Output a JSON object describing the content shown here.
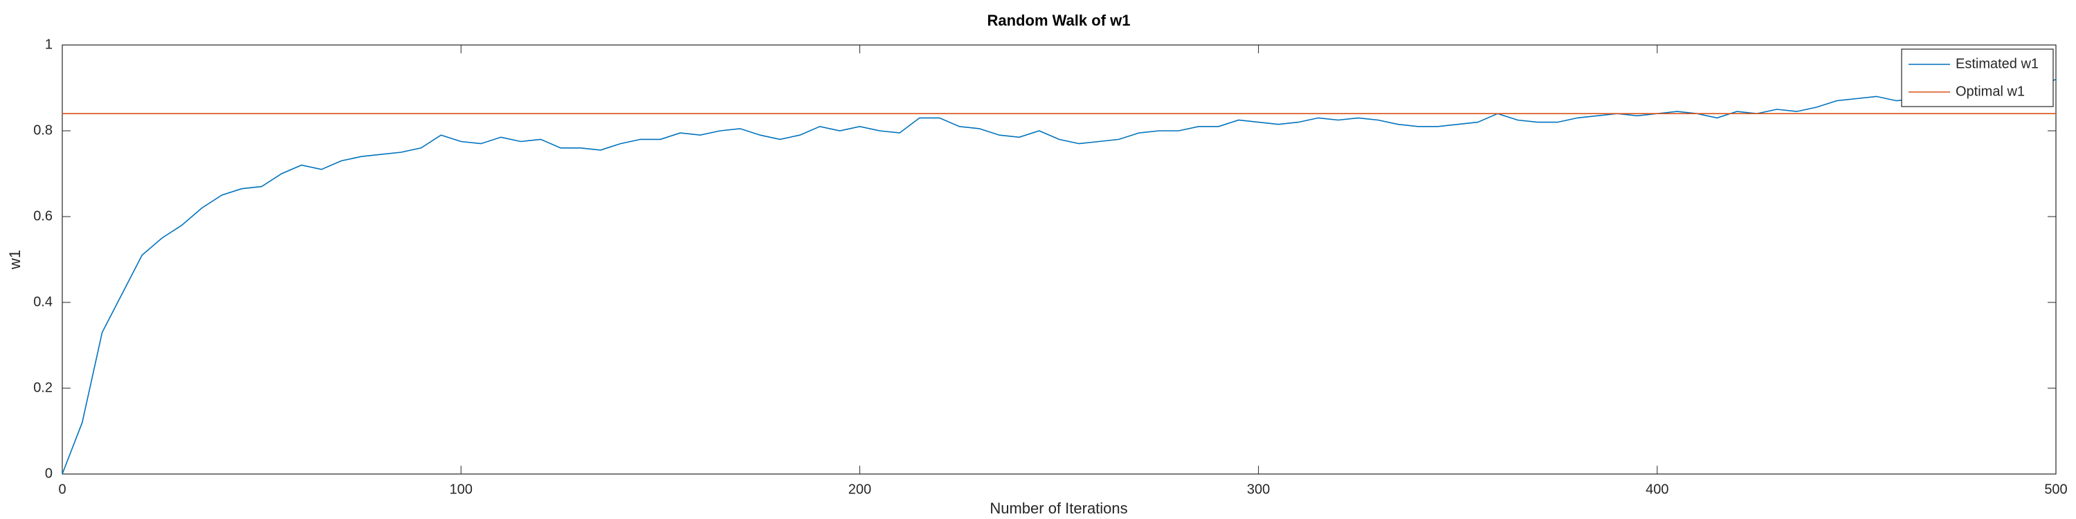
{
  "chart_data": {
    "type": "line",
    "title": "Random Walk of w1",
    "x_label": "Number of Iterations",
    "y_label": "w1",
    "xlim": [
      0,
      500
    ],
    "ylim": [
      0,
      1
    ],
    "xticks": [
      0,
      100,
      200,
      300,
      400,
      500
    ],
    "yticks": [
      0,
      0.2,
      0.4,
      0.6,
      0.8,
      1
    ],
    "grid": false,
    "legend": "upper right",
    "series": [
      {
        "name": "Estimated w1",
        "color": "#0072bd",
        "x": [
          0,
          5,
          10,
          15,
          20,
          25,
          30,
          35,
          40,
          45,
          50,
          55,
          60,
          65,
          70,
          75,
          80,
          85,
          90,
          95,
          100,
          105,
          110,
          115,
          120,
          125,
          130,
          135,
          140,
          145,
          150,
          155,
          160,
          165,
          170,
          175,
          180,
          185,
          190,
          195,
          200,
          205,
          210,
          215,
          220,
          225,
          230,
          235,
          240,
          245,
          250,
          255,
          260,
          265,
          270,
          275,
          280,
          285,
          290,
          295,
          300,
          305,
          310,
          315,
          320,
          325,
          330,
          335,
          340,
          345,
          350,
          355,
          360,
          365,
          370,
          375,
          380,
          385,
          390,
          395,
          400,
          405,
          410,
          415,
          420,
          425,
          430,
          435,
          440,
          445,
          450,
          455,
          460,
          465,
          470,
          475,
          480,
          485,
          490,
          495,
          500
        ],
        "values": [
          0,
          0.12,
          0.33,
          0.42,
          0.51,
          0.55,
          0.58,
          0.62,
          0.65,
          0.665,
          0.67,
          0.7,
          0.72,
          0.71,
          0.73,
          0.74,
          0.745,
          0.75,
          0.76,
          0.79,
          0.775,
          0.77,
          0.785,
          0.775,
          0.78,
          0.76,
          0.76,
          0.755,
          0.77,
          0.78,
          0.78,
          0.795,
          0.79,
          0.8,
          0.805,
          0.79,
          0.78,
          0.79,
          0.81,
          0.8,
          0.81,
          0.8,
          0.795,
          0.83,
          0.83,
          0.81,
          0.805,
          0.79,
          0.785,
          0.8,
          0.78,
          0.77,
          0.775,
          0.78,
          0.795,
          0.8,
          0.8,
          0.81,
          0.81,
          0.825,
          0.82,
          0.815,
          0.82,
          0.83,
          0.825,
          0.83,
          0.825,
          0.815,
          0.81,
          0.81,
          0.815,
          0.82,
          0.84,
          0.825,
          0.82,
          0.82,
          0.83,
          0.835,
          0.84,
          0.835,
          0.84,
          0.845,
          0.84,
          0.83,
          0.845,
          0.84,
          0.85,
          0.845,
          0.855,
          0.87,
          0.875,
          0.88,
          0.87,
          0.875,
          0.89,
          0.895,
          0.9,
          0.905,
          0.91,
          0.9,
          0.92
        ]
      },
      {
        "name": "Optimal w1",
        "color": "#d95319",
        "x": [
          0,
          500
        ],
        "values": [
          0.84,
          0.84
        ]
      }
    ]
  }
}
